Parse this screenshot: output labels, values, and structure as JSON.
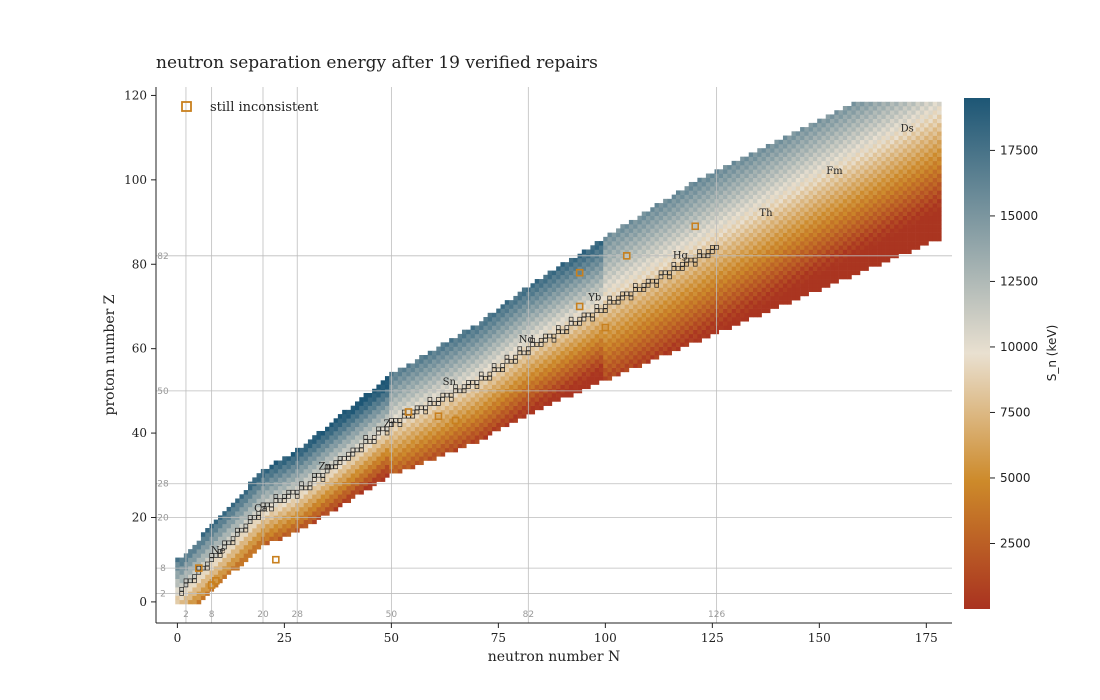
{
  "chart_data": {
    "type": "heatmap",
    "title": "neutron separation energy after 19 verified repairs",
    "xlabel": "neutron number N",
    "ylabel": "proton number Z",
    "xlim": [
      -5,
      181
    ],
    "ylim": [
      -5,
      122
    ],
    "x_ticks": [
      0,
      25,
      50,
      75,
      100,
      125,
      150,
      175
    ],
    "y_ticks": [
      0,
      20,
      40,
      60,
      80,
      100,
      120
    ],
    "magic_numbers": [
      2,
      8,
      20,
      28,
      50,
      82,
      126
    ],
    "magic_numbers_z": [
      2,
      8,
      20,
      28,
      50,
      82
    ],
    "grid": "magic-number lines",
    "legend": {
      "label": "still inconsistent",
      "position": "top-left",
      "marker": "orange open square"
    },
    "colorbar": {
      "label": "S_n (keV)",
      "range": [
        0,
        19500
      ],
      "ticks": [
        2500,
        5000,
        7500,
        10000,
        12500,
        15000,
        17500
      ],
      "colormap": [
        "#a93220",
        "#cd8a2a",
        "#e9e0d0",
        "#1d5675"
      ]
    },
    "element_labels": [
      {
        "symbol": "Ne",
        "n": 10,
        "z": 10
      },
      {
        "symbol": "Ca",
        "n": 20,
        "z": 20
      },
      {
        "symbol": "Zn",
        "n": 35,
        "z": 30
      },
      {
        "symbol": "Zr",
        "n": 50,
        "z": 40
      },
      {
        "symbol": "Sn",
        "n": 64,
        "z": 50
      },
      {
        "symbol": "Nd",
        "n": 82,
        "z": 60
      },
      {
        "symbol": "Yb",
        "n": 98,
        "z": 70
      },
      {
        "symbol": "Hg",
        "n": 118,
        "z": 80
      },
      {
        "symbol": "Th",
        "n": 138,
        "z": 90
      },
      {
        "symbol": "Fm",
        "n": 154,
        "z": 100
      },
      {
        "symbol": "Ds",
        "n": 171,
        "z": 110
      }
    ],
    "still_inconsistent": [
      [
        5,
        8
      ],
      [
        9,
        5
      ],
      [
        8,
        4
      ],
      [
        23,
        10
      ],
      [
        54,
        45
      ],
      [
        94,
        78
      ],
      [
        94,
        70
      ],
      [
        105,
        82
      ],
      [
        121,
        89
      ],
      [
        61,
        44
      ],
      [
        65,
        43
      ],
      [
        100,
        65
      ]
    ],
    "valley_of_stability": [
      [
        1,
        1
      ],
      [
        6,
        6
      ],
      [
        20,
        20
      ],
      [
        28,
        24
      ],
      [
        50,
        40
      ],
      [
        70,
        50
      ],
      [
        82,
        58
      ],
      [
        100,
        68
      ],
      [
        126,
        82
      ]
    ]
  }
}
